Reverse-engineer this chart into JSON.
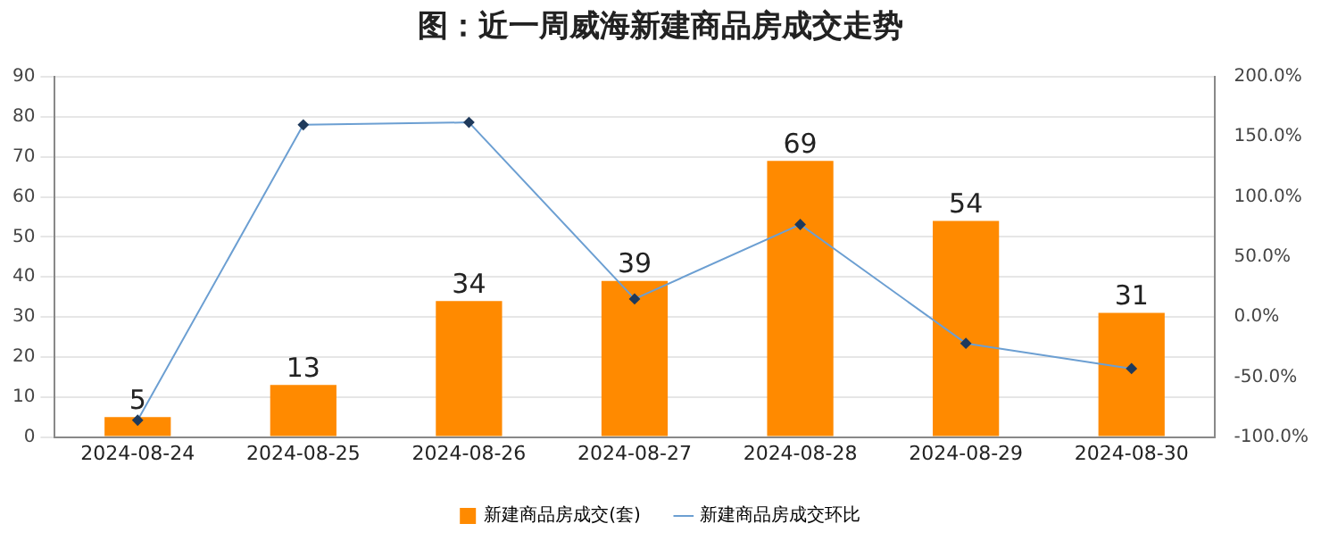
{
  "chart_data": {
    "type": "bar",
    "title": "图：近一周威海新建商品房成交走势",
    "categories": [
      "2024-08-24",
      "2024-08-25",
      "2024-08-26",
      "2024-08-27",
      "2024-08-28",
      "2024-08-29",
      "2024-08-30"
    ],
    "series": [
      {
        "name": "新建商品房成交(套)",
        "color": "#ff8a00",
        "values": [
          5,
          13,
          34,
          39,
          69,
          54,
          31
        ],
        "value_labels": [
          "5",
          "13",
          "34",
          "39",
          "69",
          "54",
          "31"
        ]
      },
      {
        "name": "新建商品房成交环比",
        "type": "line",
        "axis": "y2",
        "color": "#6c9fd2",
        "values": [
          -86,
          160,
          162,
          15,
          77,
          -22,
          -43
        ]
      }
    ],
    "ylim": [
      0,
      90
    ],
    "yticks": [
      0,
      10,
      20,
      30,
      40,
      50,
      60,
      70,
      80,
      90
    ],
    "y2lim": [
      -100,
      200
    ],
    "y2ticks": [
      {
        "value": -100,
        "label": "-100.0%"
      },
      {
        "value": -50,
        "label": "-50.0%"
      },
      {
        "value": 0,
        "label": "0.0%"
      },
      {
        "value": 50,
        "label": "50.0%"
      },
      {
        "value": 100,
        "label": "100.0%"
      },
      {
        "value": 150,
        "label": "150.0%"
      },
      {
        "value": 200,
        "label": "200.0%"
      }
    ],
    "grid": "y",
    "legend": "bottom",
    "marker": "diamond",
    "line_style": "solid"
  }
}
